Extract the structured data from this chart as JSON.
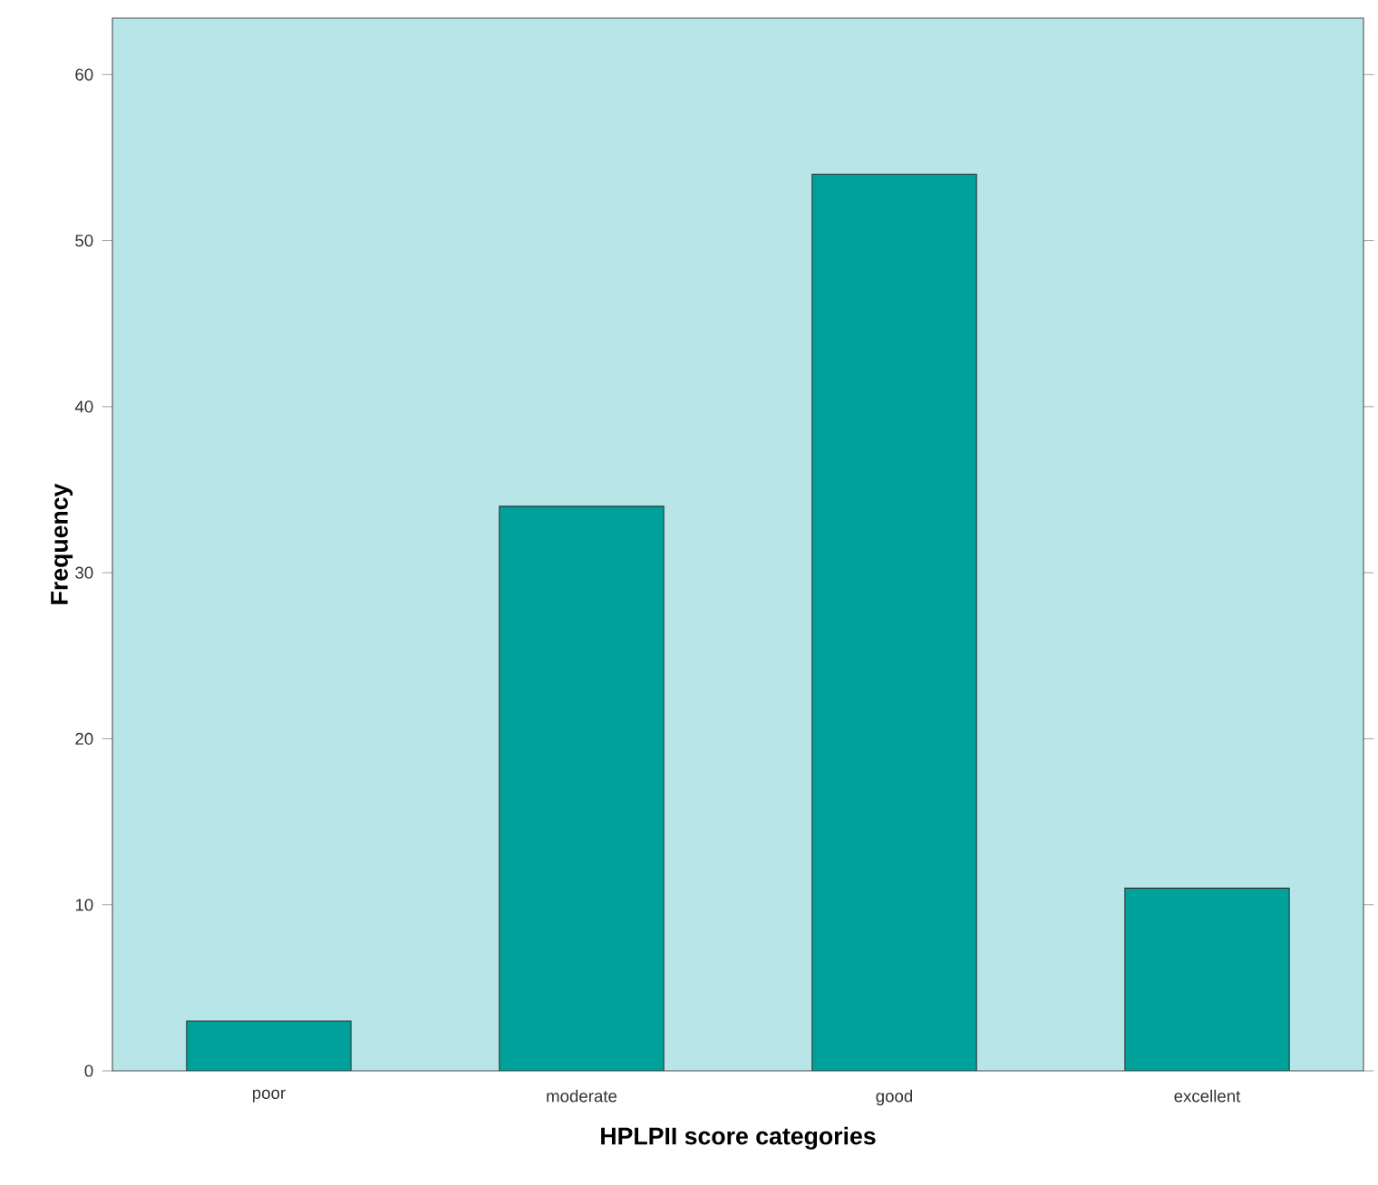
{
  "chart_data": {
    "type": "bar",
    "xlabel": "HPLPII score categories",
    "ylabel": "Frequency",
    "categories": [
      "poor",
      "moderate",
      "good",
      "excellent"
    ],
    "values": [
      3,
      34,
      54,
      11
    ],
    "color": "#00a19a",
    "ylim": [
      0,
      63.4
    ],
    "yticks": [
      0,
      10,
      20,
      30,
      40,
      50,
      60
    ],
    "grid": false
  }
}
